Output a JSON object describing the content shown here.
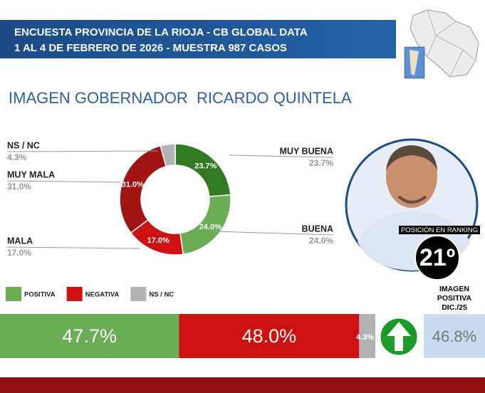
{
  "header": {
    "lines": [
      "ENCUESTA PROVINCIA DE LA RIOJA - CB GLOBAL DATA",
      "1 AL 4 DE FEBRERO DE 2026 - MUESTRA 987 CASOS"
    ]
  },
  "chart_data": [
    {
      "type": "donut",
      "title": "IMAGEN GOBERNADOR  RICARDO QUINTELA",
      "categories": [
        "MUY BUENA",
        "BUENA",
        "MALA",
        "MUY MALA",
        "NS / NC"
      ],
      "values": [
        23.7,
        24.0,
        17.0,
        31.0,
        4.3
      ],
      "value_labels": [
        "23.7%",
        "24.0%",
        "17.0%",
        "31.0%",
        "4.3%"
      ],
      "colors": [
        "#2f7a22",
        "#6aad55",
        "#cc1111",
        "#a01414",
        "#b3b3b3"
      ]
    },
    {
      "type": "stacked-bar",
      "legend": "top-left",
      "series": [
        {
          "name": "POSITIVA",
          "color": "#6aad55",
          "values": [
            47.7
          ],
          "value_labels": [
            "47.7%"
          ]
        },
        {
          "name": "NEGATIVA",
          "color": "#cc1111",
          "values": [
            48.0
          ],
          "value_labels": [
            "48.0%"
          ]
        },
        {
          "name": "NS / NC",
          "color": "#b3b3b3",
          "values": [
            4.3
          ],
          "value_labels": [
            "4.3%"
          ]
        }
      ]
    }
  ],
  "ranking": {
    "label": "POSICIÓN EN RANKING",
    "position": "21º"
  },
  "previous": {
    "label": [
      "IMAGEN",
      "POSITIVA",
      "DIC./25"
    ],
    "value": "46.8%"
  }
}
